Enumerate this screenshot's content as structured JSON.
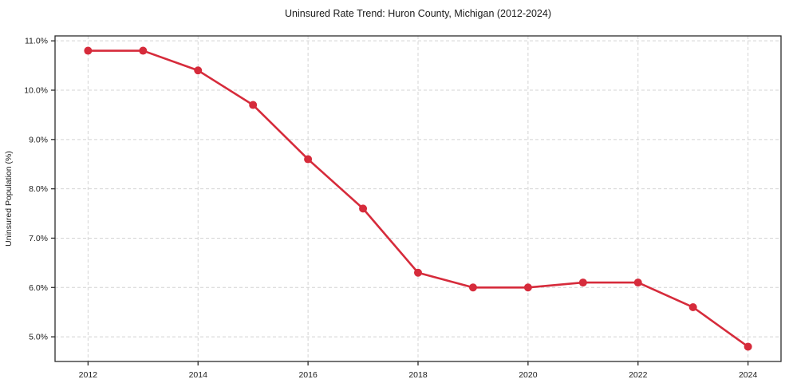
{
  "chart_data": {
    "type": "line",
    "title": "Uninsured Rate Trend: Huron County, Michigan (2012-2024)",
    "xlabel": "",
    "ylabel": "Uninsured Population (%)",
    "x": [
      2012,
      2013,
      2014,
      2015,
      2016,
      2017,
      2018,
      2019,
      2020,
      2021,
      2022,
      2023,
      2024
    ],
    "values": [
      10.8,
      10.8,
      10.4,
      9.7,
      8.6,
      7.6,
      6.3,
      6.0,
      6.0,
      6.1,
      6.1,
      5.6,
      4.8
    ],
    "xticks": [
      2012,
      2014,
      2016,
      2018,
      2020,
      2022,
      2024
    ],
    "xtick_labels": [
      "2012",
      "2014",
      "2016",
      "2018",
      "2020",
      "2022",
      "2024"
    ],
    "yticks": [
      5.0,
      6.0,
      7.0,
      8.0,
      9.0,
      10.0,
      11.0
    ],
    "ytick_labels": [
      "5.0%",
      "6.0%",
      "7.0%",
      "8.0%",
      "9.0%",
      "10.0%",
      "11.0%"
    ],
    "xlim": [
      2011.4,
      2024.6
    ],
    "ylim": [
      4.5,
      11.1
    ],
    "grid": true,
    "grid_style": "dashed",
    "legend": "none",
    "colors": {
      "line": "#d62b3b",
      "marker": "#d62b3b",
      "grid": "#d4d4d4",
      "spine": "#2b2b2b",
      "tick": "#2b2b2b",
      "text": "#1a1a1a",
      "background": "#ffffff"
    }
  }
}
